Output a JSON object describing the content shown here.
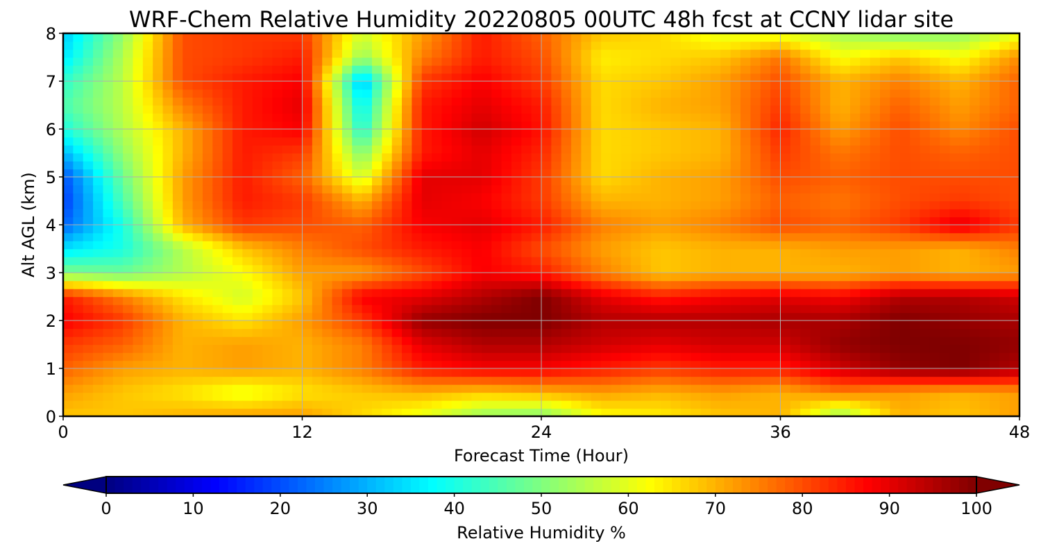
{
  "chart_data": {
    "type": "heatmap",
    "title": "WRF-Chem Relative Humidity 20220805 00UTC 48h fcst at CCNY lidar site",
    "xlabel": "Forecast Time (Hour)",
    "ylabel": "Alt AGL (km)",
    "xlim": [
      0,
      48
    ],
    "ylim": [
      0,
      8
    ],
    "x_ticks": [
      "0",
      "12",
      "24",
      "36",
      "48"
    ],
    "y_ticks": [
      "0",
      "1",
      "2",
      "3",
      "4",
      "5",
      "6",
      "7",
      "8"
    ],
    "grid": true,
    "x_hours": [
      0,
      3,
      6,
      9,
      12,
      15,
      18,
      21,
      24,
      27,
      30,
      33,
      36,
      39,
      42,
      45,
      48
    ],
    "y_km": [
      0,
      0.5,
      1,
      1.5,
      2,
      2.5,
      3,
      3.5,
      4,
      4.5,
      5,
      5.5,
      6,
      6.5,
      7,
      7.5,
      8
    ],
    "z_rh": [
      [
        68,
        68,
        70,
        72,
        72,
        66,
        60,
        52,
        50,
        62,
        64,
        68,
        70,
        52,
        70,
        68,
        72
      ],
      [
        72,
        68,
        65,
        60,
        65,
        68,
        70,
        68,
        70,
        72,
        70,
        72,
        70,
        75,
        72,
        70,
        72
      ],
      [
        78,
        72,
        70,
        72,
        70,
        75,
        85,
        88,
        88,
        85,
        82,
        85,
        85,
        92,
        98,
        100,
        95
      ],
      [
        82,
        78,
        70,
        72,
        70,
        75,
        90,
        95,
        95,
        92,
        90,
        92,
        92,
        98,
        100,
        100,
        98
      ],
      [
        88,
        82,
        70,
        65,
        72,
        82,
        98,
        100,
        100,
        95,
        95,
        95,
        96,
        96,
        100,
        98,
        96
      ],
      [
        85,
        75,
        65,
        58,
        68,
        88,
        90,
        95,
        100,
        90,
        85,
        88,
        90,
        88,
        95,
        95,
        92
      ],
      [
        50,
        48,
        55,
        62,
        72,
        72,
        80,
        88,
        85,
        75,
        68,
        70,
        70,
        70,
        72,
        70,
        72
      ],
      [
        35,
        40,
        55,
        68,
        75,
        80,
        85,
        88,
        80,
        72,
        68,
        70,
        70,
        72,
        72,
        70,
        75
      ],
      [
        22,
        40,
        70,
        82,
        80,
        78,
        88,
        90,
        85,
        75,
        72,
        75,
        80,
        78,
        82,
        90,
        82
      ],
      [
        18,
        45,
        72,
        85,
        82,
        70,
        90,
        88,
        82,
        70,
        70,
        72,
        78,
        76,
        80,
        82,
        80
      ],
      [
        20,
        48,
        72,
        85,
        78,
        58,
        90,
        90,
        82,
        66,
        70,
        72,
        80,
        78,
        80,
        80,
        80
      ],
      [
        30,
        52,
        70,
        85,
        82,
        50,
        85,
        90,
        84,
        66,
        68,
        70,
        82,
        76,
        80,
        78,
        80
      ],
      [
        40,
        55,
        70,
        85,
        88,
        40,
        85,
        92,
        86,
        66,
        68,
        70,
        84,
        72,
        80,
        74,
        80
      ],
      [
        45,
        56,
        75,
        85,
        90,
        36,
        85,
        90,
        85,
        66,
        70,
        72,
        82,
        70,
        78,
        72,
        78
      ],
      [
        42,
        56,
        80,
        85,
        88,
        30,
        82,
        88,
        82,
        66,
        68,
        72,
        80,
        70,
        75,
        70,
        78
      ],
      [
        35,
        55,
        80,
        82,
        85,
        52,
        75,
        85,
        80,
        64,
        66,
        68,
        76,
        62,
        68,
        62,
        74
      ],
      [
        32,
        52,
        80,
        82,
        82,
        58,
        72,
        85,
        78,
        68,
        66,
        60,
        60,
        54,
        50,
        52,
        60
      ]
    ],
    "colorbar": {
      "label": "Relative Humidity %",
      "ticks": [
        "0",
        "10",
        "20",
        "30",
        "40",
        "50",
        "60",
        "70",
        "80",
        "90",
        "100"
      ],
      "min": 0,
      "max": 100,
      "colormap": "jet",
      "extend": "both"
    }
  }
}
